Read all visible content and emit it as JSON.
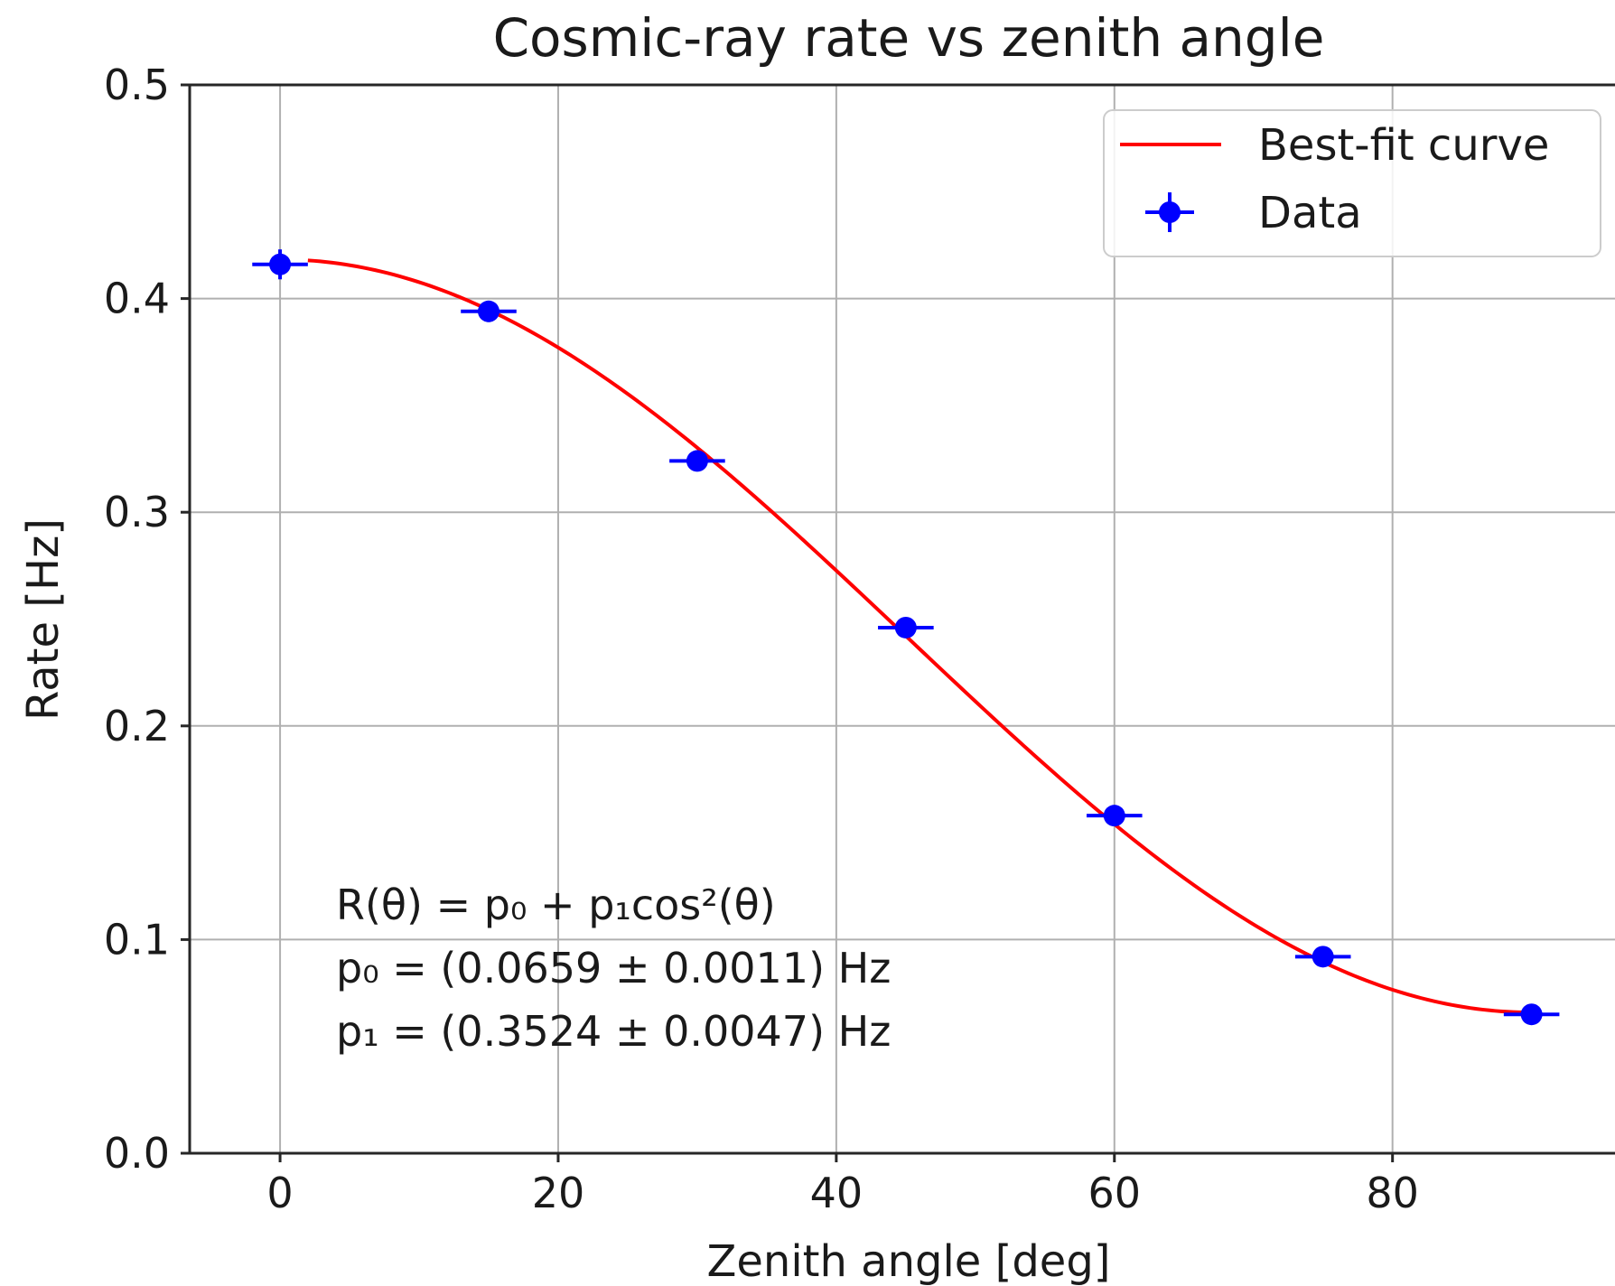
{
  "chart_data": {
    "type": "scatter",
    "title": "Cosmic-ray rate vs zenith angle",
    "xlabel": "Zenith angle [deg]",
    "ylabel": "Rate [Hz]",
    "xlim": [
      -6.5,
      96
    ],
    "ylim": [
      0.0,
      0.5
    ],
    "x_ticks": [
      0,
      20,
      40,
      60,
      80
    ],
    "x_tick_labels": [
      "0",
      "20",
      "40",
      "60",
      "80"
    ],
    "y_ticks": [
      0.0,
      0.1,
      0.2,
      0.3,
      0.4,
      0.5
    ],
    "y_tick_labels": [
      "0.0",
      "0.1",
      "0.2",
      "0.3",
      "0.4",
      "0.5"
    ],
    "grid": true,
    "legend_position": "top-right",
    "series": [
      {
        "name": "Data",
        "kind": "errorbar",
        "color": "#0000ff",
        "x": [
          0,
          15,
          30,
          45,
          60,
          75,
          90
        ],
        "y": [
          0.416,
          0.394,
          0.324,
          0.246,
          0.158,
          0.092,
          0.065
        ],
        "x_err": [
          2.0,
          2.0,
          2.0,
          2.0,
          2.0,
          2.0,
          2.0
        ],
        "y_err": [
          0.007,
          0.005,
          0.004,
          0.003,
          0.003,
          0.002,
          0.002
        ]
      },
      {
        "name": "Best-fit curve",
        "kind": "line",
        "color": "#ff0000",
        "function": "p0 + p1*cos^2(theta)",
        "params": {
          "p0": 0.0659,
          "p1": 0.3524
        },
        "x_range": [
          2,
          90
        ]
      }
    ],
    "annotation_lines": [
      "R(θ) = p₀ + p₁cos²(θ)",
      "p₀ = (0.0659 ± 0.0011) Hz",
      "p₁ = (0.3524 ± 0.0047) Hz"
    ]
  }
}
